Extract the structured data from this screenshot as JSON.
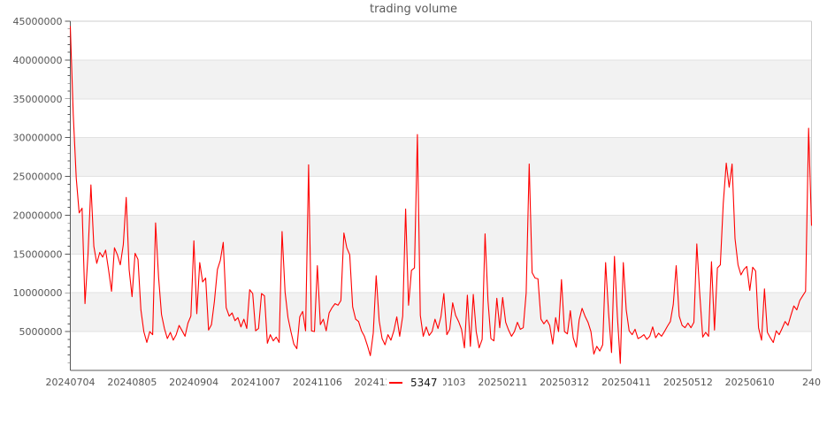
{
  "title": "trading volume",
  "legend": {
    "label": "5347",
    "line_color": "#ff0000"
  },
  "chart_data": {
    "type": "line",
    "title": "trading volume",
    "xlabel": "",
    "ylabel": "",
    "ylim": [
      0,
      45000000
    ],
    "y_major_step": 5000000,
    "y_minor_step": 1000000,
    "grid": "horizontal-bands",
    "legend_position": "bottom-center",
    "colors": {
      "line": "#ff0000",
      "band_fill": "#f2f2f2",
      "grid_line": "#e2e2e2",
      "frame_light": "#cccccc",
      "axis_dark": "#595959",
      "tick_label": "#555555"
    },
    "x_axis": {
      "tick_labels": [
        "20240704",
        "20240805",
        "20240904",
        "20241007",
        "20241106",
        "20241206",
        "20250103",
        "20250211",
        "20250312",
        "20250411",
        "20250512",
        "20250610",
        "240"
      ]
    },
    "y_axis": {
      "tick_labels": [
        "5000000",
        "10000000",
        "15000000",
        "20000000",
        "25000000",
        "30000000",
        "35000000",
        "40000000",
        "45000000"
      ]
    },
    "series": [
      {
        "name": "5347",
        "color": "#ff0000",
        "unit_scale": 1000000,
        "values_millions": [
          44.3,
          33.0,
          24.8,
          20.3,
          20.9,
          8.6,
          15.0,
          23.9,
          16.0,
          13.8,
          15.2,
          14.6,
          15.5,
          13.0,
          10.2,
          15.8,
          14.9,
          13.6,
          16.2,
          22.3,
          13.0,
          9.5,
          15.1,
          14.3,
          7.8,
          5.0,
          3.6,
          5.0,
          4.6,
          19.0,
          12.0,
          7.2,
          5.4,
          4.1,
          4.9,
          3.9,
          4.6,
          5.8,
          5.1,
          4.4,
          6.1,
          7.0,
          16.7,
          7.3,
          13.9,
          11.4,
          11.9,
          5.2,
          5.9,
          8.9,
          13.0,
          14.2,
          16.5,
          8.1,
          7.0,
          7.4,
          6.4,
          6.8,
          5.6,
          6.6,
          5.4,
          10.4,
          9.9,
          5.1,
          5.4,
          9.9,
          9.6,
          3.5,
          4.6,
          3.8,
          4.3,
          3.6,
          17.9,
          10.1,
          6.8,
          5.0,
          3.4,
          2.8,
          6.9,
          7.6,
          5.1,
          26.5,
          5.1,
          5.0,
          13.5,
          5.9,
          6.6,
          5.1,
          7.4,
          8.1,
          8.6,
          8.4,
          9.0,
          17.7,
          15.8,
          14.9,
          8.2,
          6.6,
          6.3,
          5.1,
          4.4,
          3.2,
          1.9,
          4.8,
          12.2,
          6.4,
          4.1,
          3.3,
          4.6,
          3.9,
          5.1,
          6.9,
          4.4,
          7.0,
          20.8,
          8.4,
          12.9,
          13.2,
          30.4,
          7.1,
          4.4,
          5.6,
          4.5,
          5.0,
          6.6,
          5.4,
          6.9,
          9.9,
          4.6,
          5.3,
          8.7,
          7.1,
          6.3,
          5.3,
          2.9,
          9.7,
          3.1,
          9.8,
          5.0,
          2.9,
          4.0,
          17.6,
          9.0,
          4.1,
          3.8,
          9.3,
          5.5,
          9.4,
          6.2,
          5.2,
          4.4,
          5.0,
          6.2,
          5.3,
          5.5,
          10.0,
          26.6,
          12.6,
          11.9,
          11.8,
          6.6,
          6.0,
          6.5,
          5.8,
          3.4,
          6.8,
          5.0,
          11.7,
          5.0,
          4.7,
          7.7,
          4.2,
          3.0,
          6.5,
          8.0,
          7.0,
          6.2,
          5.0,
          2.1,
          3.1,
          2.5,
          3.3,
          13.9,
          7.5,
          2.3,
          14.7,
          7.0,
          0.9,
          13.9,
          7.8,
          5.1,
          4.6,
          5.3,
          4.1,
          4.3,
          4.6,
          4.0,
          4.4,
          5.6,
          4.2,
          4.8,
          4.4,
          5.0,
          5.7,
          6.3,
          8.5,
          13.5,
          7.0,
          5.8,
          5.5,
          6.1,
          5.5,
          6.2,
          16.3,
          9.9,
          4.3,
          4.9,
          4.4,
          14.0,
          5.2,
          13.2,
          13.6,
          21.5,
          26.7,
          23.6,
          26.6,
          17.0,
          13.6,
          12.3,
          13.0,
          13.4,
          10.3,
          13.3,
          12.8,
          5.5,
          3.9,
          10.5,
          4.9,
          4.2,
          3.6,
          5.1,
          4.6,
          5.4,
          6.3,
          5.8,
          7.1,
          8.3,
          7.8,
          9.0,
          9.6,
          10.2,
          31.2,
          18.7
        ]
      }
    ]
  }
}
